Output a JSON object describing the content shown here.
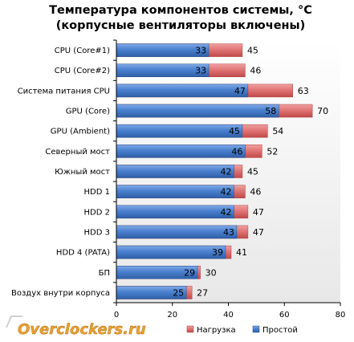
{
  "chart_data": {
    "type": "bar",
    "orientation": "horizontal",
    "stacked": "overlay",
    "title_line1": "Температура компонентов системы, °С",
    "title_line2": "(корпусные вентиляторы включены)",
    "xlabel": "",
    "ylabel": "",
    "xlim": [
      0,
      80
    ],
    "x_ticks": [
      0,
      20,
      40,
      60,
      80
    ],
    "grid": false,
    "legend_position": "bottom",
    "categories": [
      "CPU (Core#1)",
      "CPU (Core#2)",
      "Система питания CPU",
      "GPU (Core)",
      "GPU (Ambient)",
      "Северный мост",
      "Южный мост",
      "HDD 1",
      "HDD 2",
      "HDD 3",
      "HDD 4 (PATA)",
      "БП",
      "Воздух внутри корпуса"
    ],
    "series": [
      {
        "name": "Нагрузка",
        "color": "#e07575",
        "values": [
          45,
          46,
          63,
          70,
          54,
          52,
          45,
          46,
          47,
          47,
          41,
          30,
          27
        ]
      },
      {
        "name": "Простой",
        "color": "#4a80cf",
        "values": [
          33,
          33,
          47,
          58,
          45,
          46,
          42,
          42,
          42,
          43,
          39,
          29,
          25
        ]
      }
    ]
  },
  "watermark": {
    "text": "Overclockers.ru",
    "color": "#e8a030"
  }
}
